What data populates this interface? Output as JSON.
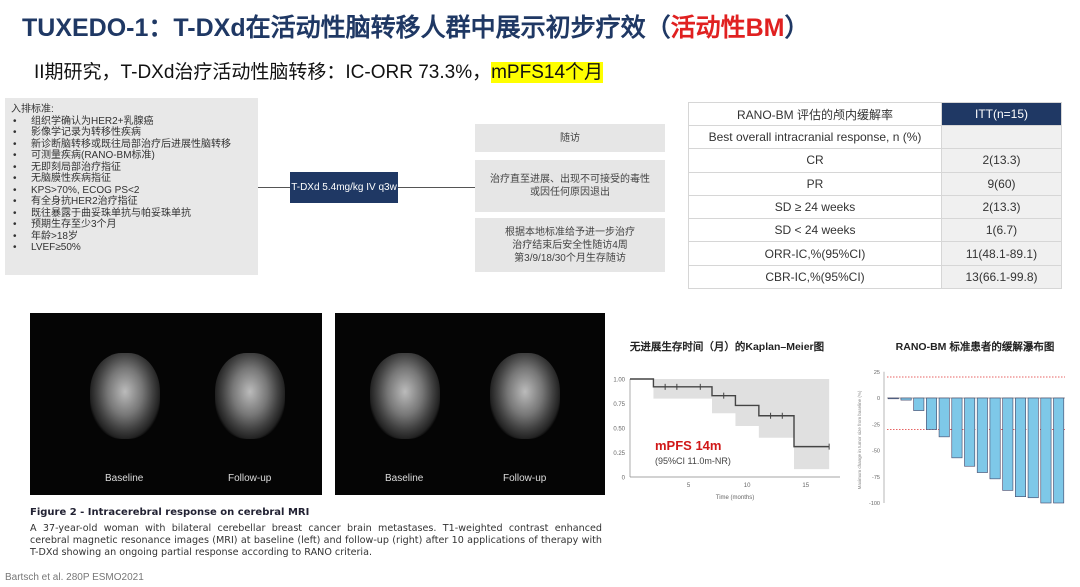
{
  "title": {
    "main": "TUXEDO-1：T-DXd在活动性脑转移人群中展示初步疗效（",
    "highlight": "活动性BM",
    "end": "）",
    "highlight_color": "#e02020"
  },
  "subtitle": {
    "main": "II期研究，T-DXd治疗活动性脑转移：IC-ORR 73.3%，",
    "highlight": "mPFS14个月"
  },
  "flow": {
    "inclusion_title": "入排标准:",
    "inclusion": [
      "组织学确认为HER2+乳腺癌",
      "影像学记录为转移性疾病",
      "新诊断脑转移或既往局部治疗后进展性脑转移",
      "可测量疾病(RANO-BM标准)",
      "无即刻局部治疗指征",
      "无脑膜性疾病指征",
      "KPS>70%, ECOG PS<2",
      "有全身抗HER2治疗指征",
      "既往暴露于曲妥珠单抗与帕妥珠单抗",
      "预期生存至少3个月",
      "年龄>18岁",
      "LVEF≥50%"
    ],
    "treatment": "T-DXd 5.4mg/kg IV q3w",
    "followup": "随访",
    "box2": [
      "治疗直至进展、出现不可接受的毒性",
      "或因任何原因退出"
    ],
    "box3": [
      "根据本地标准给予进一步治疗",
      "治疗结束后安全性随访4周",
      "第3/9/18/30个月生存随访"
    ]
  },
  "table": {
    "header": [
      "RANO-BM 评估的颅内缓解率",
      "ITT(n=15)"
    ],
    "rows": [
      [
        "Best overall intracranial response, n (%)",
        ""
      ],
      [
        "CR",
        "2(13.3)"
      ],
      [
        "PR",
        "9(60)"
      ],
      [
        "SD ≥ 24 weeks",
        "2(13.3)"
      ],
      [
        "SD < 24 weeks",
        "1(6.7)"
      ],
      [
        "ORR-IC,%(95%CI)",
        "11(48.1-89.1)"
      ],
      [
        "CBR-IC,%(95%CI)",
        "13(66.1-99.8)"
      ]
    ]
  },
  "mri": {
    "baseline": "Baseline",
    "followup": "Follow-up"
  },
  "caption": {
    "title": "Figure 2 - Intracerebral response on cerebral MRI",
    "text": "A 37-year-old woman with bilateral cerebellar breast cancer brain metastases. T1-weighted contrast enhanced cerebral magnetic resonance images (MRI) at baseline (left) and follow-up (right) after 10 applications of therapy with T-DXd showing an ongoing partial response according to RANO criteria."
  },
  "citation": "Bartsch et al. 280P ESMO2021",
  "chart_data": [
    {
      "type": "line",
      "title": "无进展生存时间（月）的Kaplan–Meier图",
      "xlabel": "Time (months)",
      "ylabel": "",
      "xlim": [
        0,
        17.5
      ],
      "ylim": [
        0,
        1
      ],
      "xticks": [
        "5",
        "10",
        "15"
      ],
      "xtick_values": [
        5,
        10,
        15
      ],
      "yticks": [
        "0",
        "0.25",
        "0.50",
        "0.75",
        "1.00"
      ],
      "ytick_values": [
        0,
        0.25,
        0.5,
        0.75,
        1
      ],
      "steps": {
        "x": [
          0,
          2,
          7,
          9,
          11,
          14,
          17
        ],
        "y": [
          1.0,
          0.92,
          0.83,
          0.73,
          0.625,
          0.31,
          0.31
        ]
      },
      "ci_lower": {
        "x": [
          2,
          7,
          9,
          11,
          14,
          17
        ],
        "y": [
          0.8,
          0.65,
          0.52,
          0.4,
          0.08,
          0.08
        ]
      },
      "ci_upper": 1.0,
      "censored": {
        "x": [
          3,
          4,
          6,
          8,
          12,
          13,
          17
        ],
        "y": [
          0.92,
          0.92,
          0.92,
          0.83,
          0.625,
          0.625,
          0.31
        ]
      },
      "annotation": "mPFS 14m",
      "annotation_sub": "(95%CI 11.0m-NR)",
      "annotation_color": "#d01818",
      "line_color": "#444444",
      "band_color": "#e0e0e0"
    },
    {
      "type": "bar",
      "title": "RANO-BM 标准患者的缓解瀑布图",
      "ylabel": "Maximum change in tumor size from baseline (%)",
      "ylim": [
        -100,
        25
      ],
      "yticks": [
        "25",
        "0",
        "-25",
        "-50",
        "-75",
        "-100"
      ],
      "ytick_values": [
        25,
        0,
        -25,
        -50,
        -75,
        -100
      ],
      "values": [
        0,
        -2,
        -12,
        -30,
        -37,
        -57,
        -65,
        -71,
        -77,
        -88,
        -94,
        -95,
        -100,
        -100
      ],
      "reference_lines": [
        20,
        -30
      ],
      "bar_color": "#7ec8e8",
      "reference_color": "#e03030"
    }
  ]
}
